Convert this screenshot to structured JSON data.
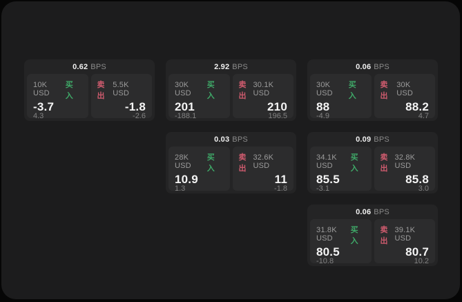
{
  "colors": {
    "window_bg": "#1c1c1d",
    "card_bg": "#242425",
    "panel_bg": "#2c2c2d",
    "buy": "#3fa968",
    "sell": "#cf5b6e"
  },
  "labels": {
    "bps_unit": "BPS",
    "buy_action": "买入",
    "sell_action": "卖出"
  },
  "cards": [
    {
      "grid": {
        "row": 1,
        "col": 1
      },
      "bps": "0.62",
      "buy": {
        "size": "10K USD",
        "value": "-3.7",
        "delta": "4.3"
      },
      "sell": {
        "size": "5.5K USD",
        "value": "-1.8",
        "delta": "-2.6"
      }
    },
    {
      "grid": {
        "row": 1,
        "col": 2
      },
      "bps": "2.92",
      "buy": {
        "size": "30K USD",
        "value": "201",
        "delta": "-188.1"
      },
      "sell": {
        "size": "30.1K USD",
        "value": "210",
        "delta": "196.5"
      }
    },
    {
      "grid": {
        "row": 1,
        "col": 3
      },
      "bps": "0.06",
      "buy": {
        "size": "30K USD",
        "value": "88",
        "delta": "-4.9"
      },
      "sell": {
        "size": "30K USD",
        "value": "88.2",
        "delta": "4.7"
      }
    },
    {
      "grid": {
        "row": 2,
        "col": 2
      },
      "bps": "0.03",
      "buy": {
        "size": "28K USD",
        "value": "10.9",
        "delta": "1.3"
      },
      "sell": {
        "size": "32.6K USD",
        "value": "11",
        "delta": "-1.8"
      }
    },
    {
      "grid": {
        "row": 2,
        "col": 3
      },
      "bps": "0.09",
      "buy": {
        "size": "34.1K USD",
        "value": "85.5",
        "delta": "-3.1"
      },
      "sell": {
        "size": "32.8K USD",
        "value": "85.8",
        "delta": "3.0"
      }
    },
    {
      "grid": {
        "row": 3,
        "col": 3
      },
      "bps": "0.06",
      "buy": {
        "size": "31.8K USD",
        "value": "80.5",
        "delta": "-10.8"
      },
      "sell": {
        "size": "39.1K USD",
        "value": "80.7",
        "delta": "10.2"
      }
    }
  ]
}
